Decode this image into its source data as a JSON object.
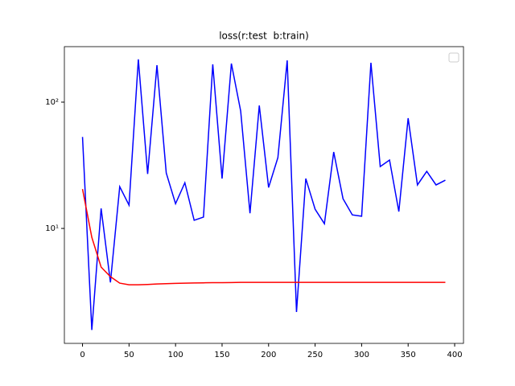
{
  "chart_data": {
    "type": "line",
    "title": "loss(r:test  b:train)",
    "x": [
      0,
      10,
      20,
      30,
      40,
      50,
      60,
      70,
      80,
      90,
      100,
      110,
      120,
      130,
      140,
      150,
      160,
      170,
      180,
      190,
      200,
      210,
      220,
      230,
      240,
      250,
      260,
      270,
      280,
      290,
      300,
      310,
      320,
      330,
      340,
      350,
      360,
      370,
      380,
      390
    ],
    "series": [
      {
        "color": "#0000ff",
        "values": [
          53,
          1.57,
          14.4,
          3.74,
          21.4,
          15.3,
          218,
          27,
          196,
          27.5,
          15.7,
          23,
          11.6,
          12.3,
          199,
          24.8,
          202,
          85,
          13.2,
          94,
          21.1,
          36.4,
          214,
          2.18,
          24.8,
          14.2,
          10.9,
          40.3,
          17.2,
          12.8,
          12.5,
          205,
          30.9,
          34.8,
          13.6,
          74.6,
          22.1,
          28.3,
          22.1,
          24.1
        ]
      },
      {
        "color": "#ff0000",
        "values": [
          20.5,
          8.5,
          4.94,
          4.15,
          3.69,
          3.58,
          3.58,
          3.6,
          3.63,
          3.65,
          3.67,
          3.69,
          3.7,
          3.71,
          3.72,
          3.72,
          3.73,
          3.74,
          3.74,
          3.74,
          3.74,
          3.74,
          3.74,
          3.74,
          3.74,
          3.74,
          3.74,
          3.74,
          3.74,
          3.74,
          3.74,
          3.74,
          3.74,
          3.74,
          3.74,
          3.74,
          3.74,
          3.74,
          3.74,
          3.74
        ]
      }
    ],
    "xlim": [
      -19.5,
      409.5
    ],
    "xticks": [
      0,
      50,
      100,
      150,
      200,
      250,
      300,
      350,
      400
    ],
    "ylim": [
      1.23,
      275
    ],
    "yticks": [
      {
        "value": 10,
        "label": "10¹"
      },
      {
        "value": 100,
        "label": "10²"
      }
    ],
    "yscale": "log"
  }
}
